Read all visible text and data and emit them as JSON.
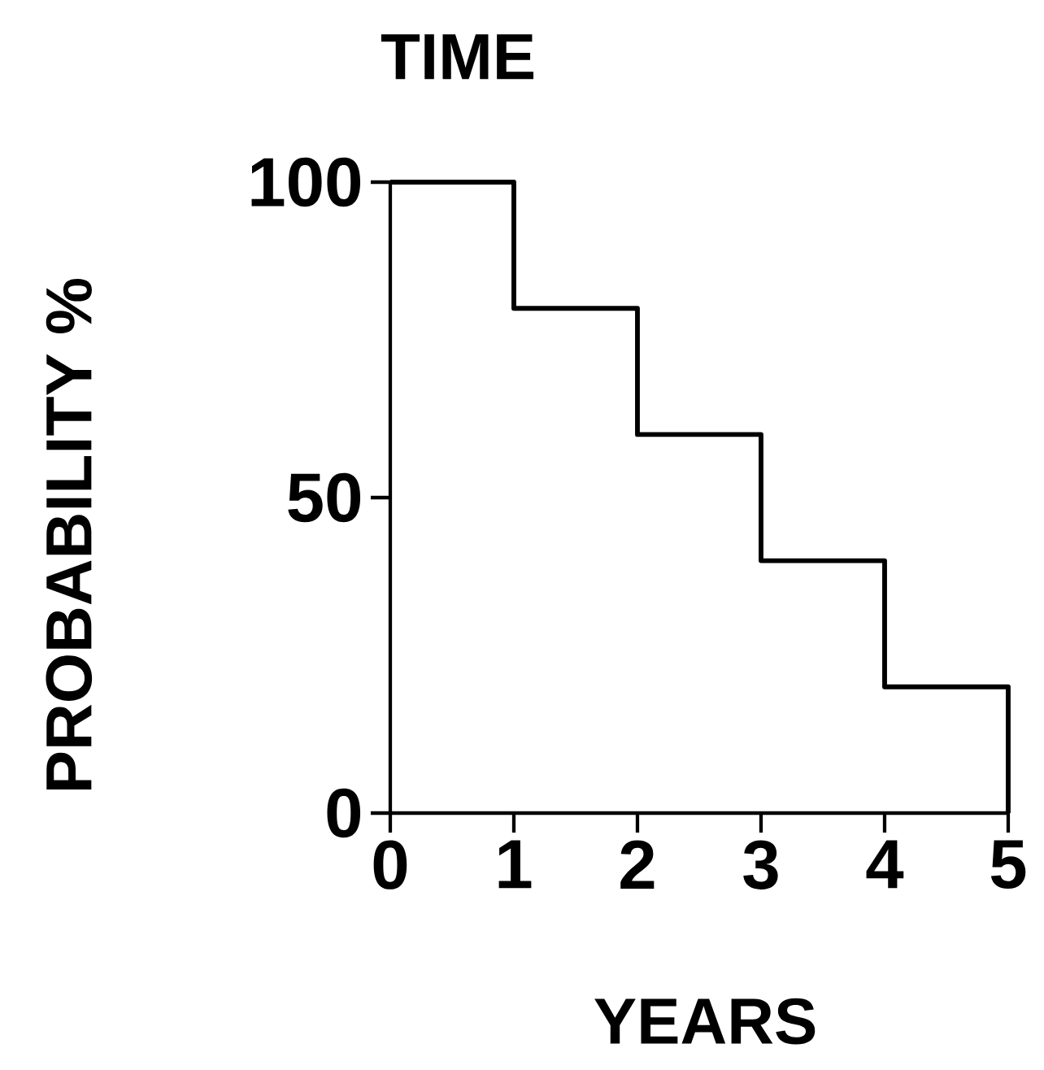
{
  "chart_data": {
    "type": "step",
    "title": "TIME",
    "xlabel": "YEARS",
    "ylabel": "PROBABILITY %",
    "x": [
      0,
      1,
      2,
      3,
      4,
      5
    ],
    "values": [
      100,
      80,
      60,
      40,
      20,
      0
    ],
    "color": "#000000",
    "xlim": [
      0,
      5
    ],
    "ylim": [
      0,
      100
    ],
    "xticks": [
      0,
      1,
      2,
      3,
      4,
      5
    ],
    "yticks": [
      0,
      50,
      100
    ]
  }
}
